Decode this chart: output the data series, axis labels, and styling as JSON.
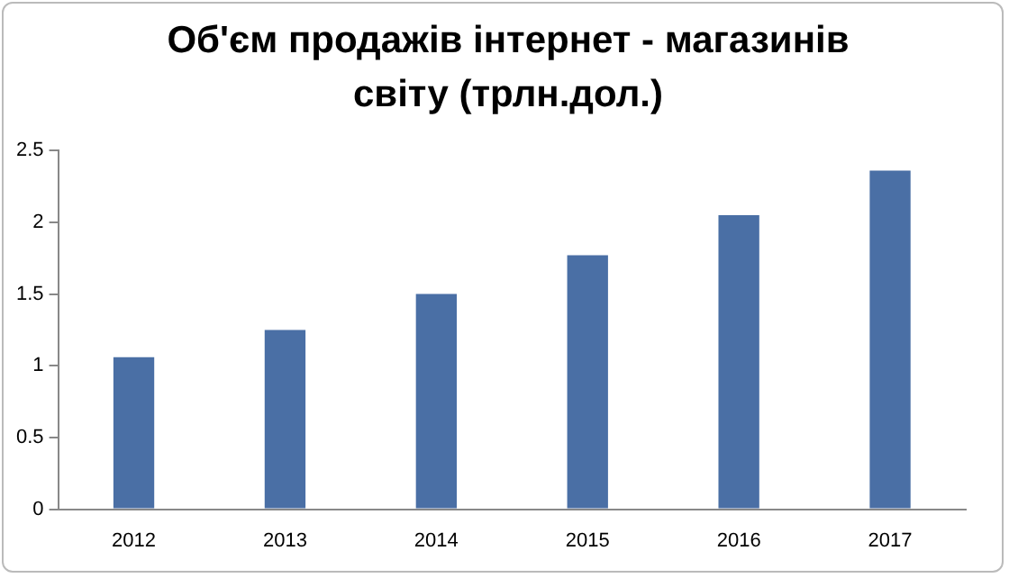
{
  "chart_data": {
    "type": "bar",
    "title": "Об'єм продажів інтернет - магазинів світу (трлн.дол.)",
    "categories": [
      "2012",
      "2013",
      "2014",
      "2015",
      "2016",
      "2017"
    ],
    "values": [
      1.06,
      1.25,
      1.5,
      1.77,
      2.05,
      2.36
    ],
    "color": "#4a6fa5",
    "ylim": [
      0,
      2.5
    ],
    "yticks": [
      0,
      0.5,
      1,
      1.5,
      2,
      2.5
    ],
    "grid": false,
    "legend": false
  }
}
